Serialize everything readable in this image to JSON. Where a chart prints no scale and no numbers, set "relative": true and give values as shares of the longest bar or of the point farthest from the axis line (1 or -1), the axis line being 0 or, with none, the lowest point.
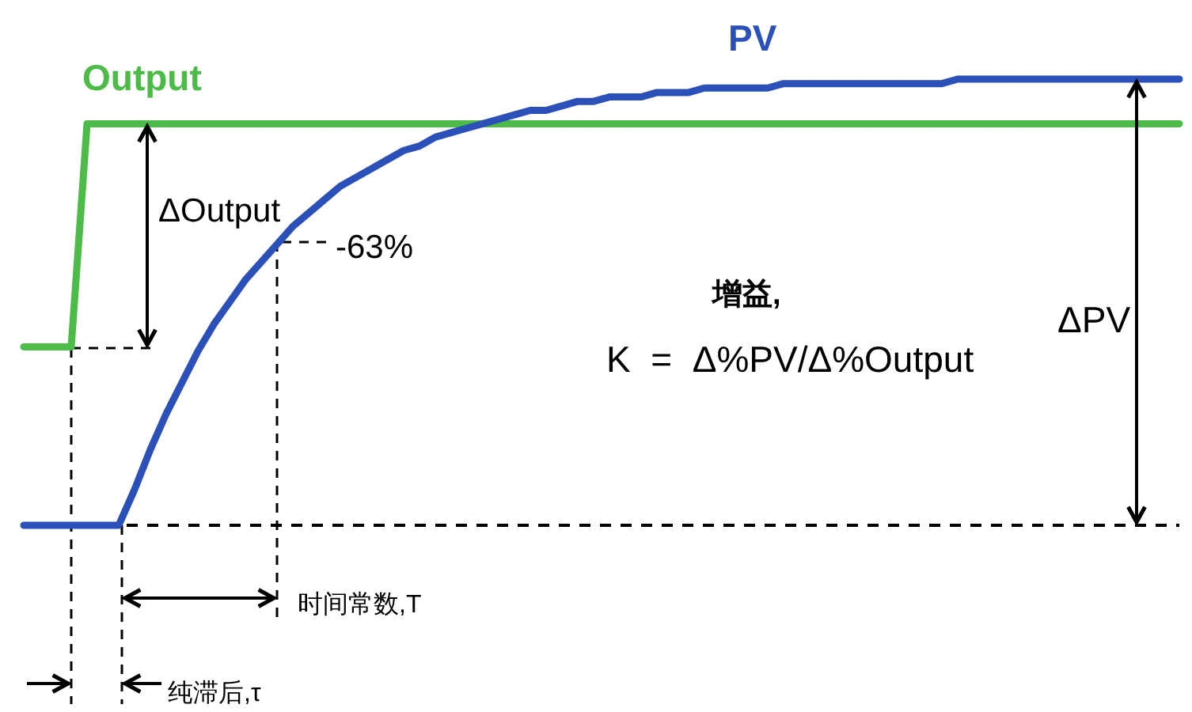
{
  "chart_data": {
    "type": "line",
    "relative": true,
    "legend": false,
    "marker": "none",
    "line_style": "solid",
    "categories": [
      null,
      null,
      null,
      null,
      null,
      null,
      null,
      null,
      null,
      null,
      null,
      null,
      null,
      null,
      null,
      null,
      null,
      null,
      null,
      null,
      null,
      null,
      null,
      null,
      null,
      null,
      null,
      null,
      null,
      null,
      null,
      null,
      null,
      null,
      null,
      null,
      null,
      null,
      null,
      null,
      null,
      null,
      null,
      null,
      null,
      null,
      null,
      null,
      null,
      null,
      null,
      null,
      null,
      null,
      null,
      null,
      null,
      null,
      null,
      null,
      null,
      null,
      null,
      null,
      null,
      null,
      null,
      null,
      null,
      null,
      null,
      null,
      null,
      null
    ],
    "series": [
      {
        "name": "Output",
        "color": "#4cbb47",
        "values": [
          0.4,
          0.4,
          0.4,
          0.4,
          0.9,
          0.9,
          0.9,
          0.9,
          0.9,
          0.9,
          0.9,
          0.9,
          0.9,
          0.9,
          0.9,
          0.9,
          0.9,
          0.9,
          0.9,
          0.9,
          0.9,
          0.9,
          0.9,
          0.9,
          0.9,
          0.9,
          0.9,
          0.9,
          0.9,
          0.9,
          0.9,
          0.9,
          0.9,
          0.9,
          0.9,
          0.9,
          0.9,
          0.9,
          0.9,
          0.9,
          0.9,
          0.9,
          0.9,
          0.9,
          0.9,
          0.9,
          0.9,
          0.9,
          0.9,
          0.9,
          0.9,
          0.9,
          0.9,
          0.9,
          0.9,
          0.9,
          0.9,
          0.9,
          0.9,
          0.9,
          0.9,
          0.9,
          0.9,
          0.9,
          0.9,
          0.9,
          0.9,
          0.9,
          0.9,
          0.9,
          0.9,
          0.9,
          0.9,
          0.9
        ]
      },
      {
        "name": "PV",
        "color": "#2b50b8",
        "values": [
          0,
          0,
          0,
          0,
          0,
          0,
          0,
          0.08,
          0.17,
          0.25,
          0.32,
          0.39,
          0.45,
          0.5,
          0.55,
          0.59,
          0.63,
          0.67,
          0.7,
          0.73,
          0.76,
          0.78,
          0.8,
          0.82,
          0.84,
          0.85,
          0.87,
          0.88,
          0.89,
          0.9,
          0.91,
          0.92,
          0.93,
          0.93,
          0.94,
          0.95,
          0.95,
          0.96,
          0.96,
          0.96,
          0.97,
          0.97,
          0.97,
          0.98,
          0.98,
          0.98,
          0.98,
          0.98,
          0.99,
          0.99,
          0.99,
          0.99,
          0.99,
          0.99,
          0.99,
          0.99,
          0.99,
          0.99,
          0.99,
          1,
          1,
          1,
          1,
          1,
          1,
          1,
          1,
          1,
          1,
          1,
          1,
          1,
          1,
          1
        ]
      }
    ],
    "ref_lines": [
      {
        "axis": "y",
        "value": 0,
        "color": "#000000",
        "line_style": "dashed"
      }
    ],
    "annotations": [
      "ΔOutput",
      "-63%",
      "增益,",
      "K  =  Δ%PV/Δ%Output",
      "ΔPV",
      "时间常数,T",
      "纯滞后,τ"
    ]
  }
}
